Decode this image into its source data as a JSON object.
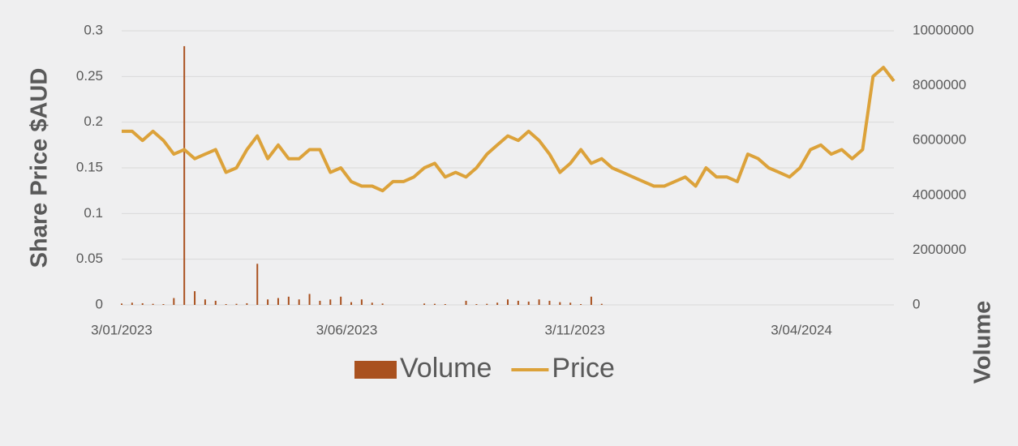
{
  "chart_data": {
    "type": "line",
    "ylabel": "Share Price $AUD",
    "y2label": "Volume",
    "x": [
      "3/01/2023",
      "10/01/2023",
      "17/01/2023",
      "24/01/2023",
      "31/01/2023",
      "7/02/2023",
      "14/02/2023",
      "21/02/2023",
      "28/02/2023",
      "7/03/2023",
      "14/03/2023",
      "21/03/2023",
      "28/03/2023",
      "4/04/2023",
      "11/04/2023",
      "18/04/2023",
      "25/04/2023",
      "2/05/2023",
      "9/05/2023",
      "16/05/2023",
      "23/05/2023",
      "30/05/2023",
      "6/06/2023",
      "13/06/2023",
      "20/06/2023",
      "27/06/2023",
      "4/07/2023",
      "11/07/2023",
      "18/07/2023",
      "25/07/2023",
      "1/08/2023",
      "8/08/2023",
      "15/08/2023",
      "22/08/2023",
      "29/08/2023",
      "5/09/2023",
      "12/09/2023",
      "19/09/2023",
      "26/09/2023",
      "3/10/2023",
      "10/10/2023",
      "17/10/2023",
      "24/10/2023",
      "31/10/2023",
      "7/11/2023",
      "14/11/2023",
      "21/11/2023",
      "28/11/2023",
      "5/12/2023",
      "12/12/2023",
      "19/12/2023",
      "26/12/2023",
      "2/01/2024",
      "9/01/2024",
      "16/01/2024",
      "23/01/2024",
      "30/01/2024",
      "6/02/2024",
      "13/02/2024",
      "20/02/2024",
      "27/02/2024",
      "5/03/2024",
      "12/03/2024",
      "19/03/2024",
      "26/03/2024",
      "2/04/2024",
      "9/04/2024",
      "16/04/2024",
      "23/04/2024",
      "30/04/2024",
      "7/05/2024",
      "14/05/2024",
      "21/05/2024",
      "28/05/2024",
      "4/06/2024"
    ],
    "series": [
      {
        "name": "Volume",
        "type": "bar",
        "axis": "y2",
        "color": "#a9511f",
        "values": [
          50000,
          80000,
          60000,
          40000,
          30000,
          250000,
          9440000,
          500000,
          200000,
          150000,
          30000,
          40000,
          60000,
          1500000,
          200000,
          250000,
          300000,
          200000,
          400000,
          150000,
          200000,
          300000,
          100000,
          200000,
          80000,
          50000,
          0,
          0,
          0,
          50000,
          40000,
          30000,
          0,
          150000,
          30000,
          40000,
          80000,
          200000,
          150000,
          120000,
          200000,
          150000,
          100000,
          80000,
          30000,
          300000,
          40000,
          0,
          0,
          0,
          0,
          0,
          0,
          0,
          0,
          0,
          0,
          0,
          0,
          0,
          0,
          0,
          0,
          0,
          0,
          0,
          0,
          0,
          0,
          0,
          0,
          0,
          0,
          0,
          0
        ]
      },
      {
        "name": "Price",
        "type": "line",
        "axis": "y",
        "color": "#dca23a",
        "values": [
          0.19,
          0.19,
          0.18,
          0.19,
          0.18,
          0.165,
          0.17,
          0.16,
          0.165,
          0.17,
          0.145,
          0.15,
          0.17,
          0.185,
          0.16,
          0.175,
          0.16,
          0.16,
          0.17,
          0.17,
          0.145,
          0.15,
          0.135,
          0.13,
          0.13,
          0.125,
          0.135,
          0.135,
          0.14,
          0.15,
          0.155,
          0.14,
          0.145,
          0.14,
          0.15,
          0.165,
          0.175,
          0.185,
          0.18,
          0.19,
          0.18,
          0.165,
          0.145,
          0.155,
          0.17,
          0.155,
          0.16,
          0.15,
          0.145,
          0.14,
          0.135,
          0.13,
          0.13,
          0.135,
          0.14,
          0.13,
          0.15,
          0.14,
          0.14,
          0.135,
          0.165,
          0.16,
          0.15,
          0.145,
          0.14,
          0.15,
          0.17,
          0.175,
          0.165,
          0.17,
          0.16,
          0.17,
          0.25,
          0.26,
          0.245
        ]
      }
    ],
    "xlim": [
      "3/01/2023",
      "4/06/2024"
    ],
    "xticks": [
      "3/01/2023",
      "3/06/2023",
      "3/11/2023",
      "3/04/2024"
    ],
    "ylim": [
      0,
      0.3
    ],
    "yticks": [
      0,
      0.05,
      0.1,
      0.15,
      0.2,
      0.25,
      0.3
    ],
    "y2lim": [
      0,
      10000000
    ],
    "y2ticks": [
      0,
      2000000,
      4000000,
      6000000,
      8000000,
      10000000
    ],
    "grid": true,
    "legend": "bottom"
  }
}
